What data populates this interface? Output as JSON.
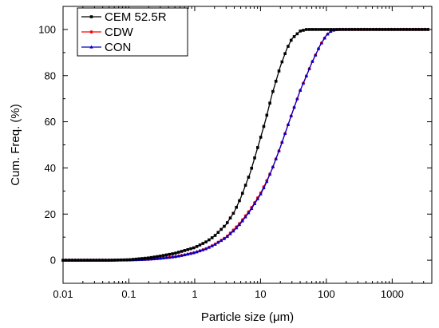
{
  "chart_data": {
    "type": "line",
    "xlabel": "Particle size (μm)",
    "ylabel": "Cum. Freq. (%)",
    "x_scale": "log",
    "xlim": [
      0.01,
      4000
    ],
    "ylim": [
      -10,
      110
    ],
    "x_ticks": [
      0.01,
      0.1,
      1,
      10,
      100,
      1000
    ],
    "x_tick_labels": [
      "0.01",
      "0.1",
      "1",
      "10",
      "100",
      "1000"
    ],
    "y_ticks": [
      0,
      20,
      40,
      60,
      80,
      100
    ],
    "y_tick_labels": [
      "0",
      "20",
      "40",
      "60",
      "80",
      "100"
    ],
    "legend_position": "top-left",
    "grid": false,
    "x": [
      0.01,
      0.02,
      0.05,
      0.1,
      0.2,
      0.3,
      0.5,
      0.7,
      1,
      1.5,
      2,
      3,
      4,
      5,
      7,
      10,
      12,
      15,
      20,
      25,
      30,
      40,
      50,
      60,
      70,
      80,
      100,
      120,
      150,
      200,
      500,
      1000,
      2000,
      3500
    ],
    "series": [
      {
        "name": "CEM 52.5R",
        "color": "#000000",
        "marker": "square",
        "values": [
          0,
          0,
          0,
          0.2,
          1.0,
          1.8,
          3.0,
          4.2,
          5.5,
          8.0,
          10.5,
          15.5,
          21.0,
          27.0,
          38.0,
          53.0,
          61.0,
          72.0,
          84.0,
          91.5,
          96.0,
          99.3,
          100,
          100,
          100,
          100,
          100,
          100,
          100,
          100,
          100,
          100,
          100,
          100
        ]
      },
      {
        "name": "CDW",
        "color": "#ff0000",
        "marker": "circle",
        "values": [
          0,
          0,
          0,
          0.1,
          0.4,
          0.8,
          1.5,
          2.3,
          3.3,
          5.0,
          6.8,
          10.0,
          13.5,
          16.5,
          22.0,
          29.0,
          33.5,
          39.5,
          49.0,
          57.0,
          63.5,
          73.5,
          80.0,
          85.5,
          89.5,
          93.0,
          97.5,
          99.5,
          100,
          100,
          100,
          100,
          100,
          100
        ]
      },
      {
        "name": "CON",
        "color": "#0000cc",
        "marker": "triangle",
        "values": [
          0,
          0,
          0,
          0.1,
          0.4,
          0.8,
          1.5,
          2.3,
          3.3,
          5.0,
          6.7,
          9.8,
          13.0,
          16.0,
          21.5,
          28.5,
          33.0,
          39.5,
          49.0,
          57.0,
          63.5,
          73.5,
          80.0,
          85.5,
          89.5,
          93.0,
          97.5,
          99.5,
          100,
          100,
          100,
          100,
          100,
          100
        ]
      }
    ]
  }
}
